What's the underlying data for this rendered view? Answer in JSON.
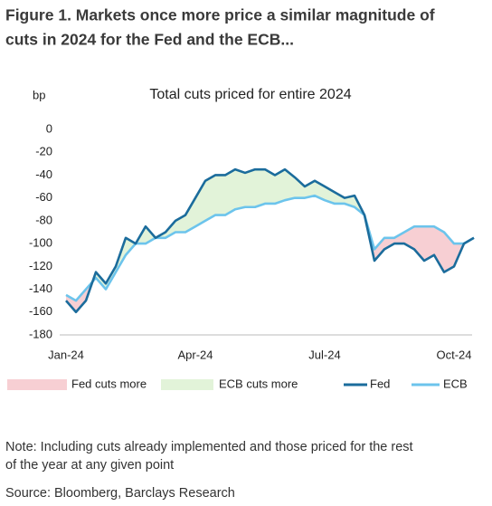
{
  "header": {
    "title_lines": [
      "Figure 1. Markets once more price a similar magnitude of",
      "cuts in 2024 for the Fed and the ECB..."
    ]
  },
  "chart_data": {
    "type": "line",
    "title": "Total cuts priced for entire 2024",
    "y_label": "bp",
    "categories": [
      "Jan-24",
      null,
      null,
      null,
      null,
      null,
      null,
      null,
      null,
      null,
      null,
      null,
      null,
      "Apr-24",
      null,
      null,
      null,
      null,
      null,
      null,
      null,
      null,
      null,
      null,
      null,
      null,
      "Jul-24",
      null,
      null,
      null,
      null,
      null,
      null,
      null,
      null,
      null,
      null,
      null,
      null,
      "Oct-24",
      null,
      null
    ],
    "series": [
      {
        "name": "Fed",
        "color": "#1b6c9c",
        "values": [
          -150,
          -160,
          -150,
          -125,
          -135,
          -120,
          -95,
          -100,
          -85,
          -95,
          -90,
          -80,
          -75,
          -60,
          -45,
          -40,
          -40,
          -35,
          -38,
          -35,
          -35,
          -40,
          -35,
          -42,
          -50,
          -45,
          -50,
          -55,
          -60,
          -58,
          -75,
          -115,
          -105,
          -100,
          -100,
          -105,
          -115,
          -110,
          -125,
          -120,
          -100,
          -95
        ]
      },
      {
        "name": "ECB",
        "color": "#6cc4ec",
        "values": [
          -145,
          -150,
          -140,
          -130,
          -140,
          -125,
          -110,
          -100,
          -100,
          -95,
          -95,
          -90,
          -90,
          -85,
          -80,
          -75,
          -75,
          -70,
          -68,
          -68,
          -65,
          -65,
          -62,
          -60,
          -60,
          -58,
          -62,
          -65,
          -65,
          -68,
          -75,
          -105,
          -95,
          -95,
          -90,
          -85,
          -85,
          -85,
          -90,
          -100,
          -100,
          -95
        ]
      }
    ],
    "areas": [
      {
        "name": "Fed cuts more",
        "color": "#f7cfd3"
      },
      {
        "name": "ECB cuts more",
        "color": "#e2f3d9"
      }
    ],
    "ylim": [
      -180,
      0
    ],
    "yticks": [
      0,
      -20,
      -40,
      -60,
      -80,
      -100,
      -120,
      -140,
      -160,
      -180
    ],
    "grid": false
  },
  "footer": {
    "note_lines": [
      "Note: Including cuts already implemented and those priced for the rest",
      "of the year at any given point"
    ],
    "source": "Source: Bloomberg, Barclays Research"
  }
}
